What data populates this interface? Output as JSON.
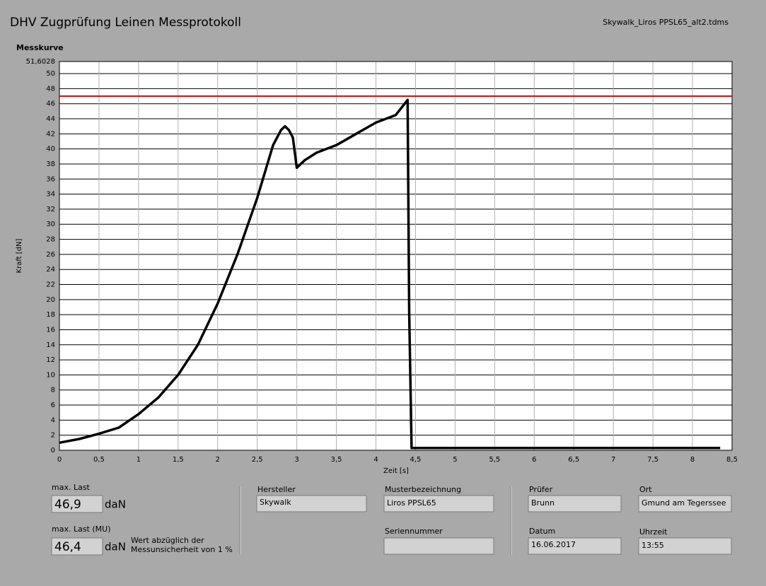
{
  "header": {
    "title": "DHV Zugprüfung Leinen Messprotokoll",
    "file": "Skywalk_Liros PPSL65_alt2.tdms"
  },
  "chart_data": {
    "type": "line",
    "title": "Messkurve",
    "x_label": "Zeit [s]",
    "y_label": "Kraft [dN]",
    "x": [
      0,
      0.25,
      0.5,
      0.75,
      1.0,
      1.25,
      1.5,
      1.75,
      2.0,
      2.25,
      2.5,
      2.6,
      2.7,
      2.8,
      2.85,
      2.9,
      2.95,
      3.0,
      3.1,
      3.25,
      3.5,
      3.75,
      4.0,
      4.25,
      4.4,
      4.42,
      4.45,
      5.0,
      6.0,
      7.0,
      8.0,
      8.35
    ],
    "values": [
      1,
      1.5,
      2.2,
      3,
      4.8,
      7,
      10,
      14,
      19.5,
      26,
      33.5,
      37,
      40.5,
      42.5,
      43,
      42.5,
      41.5,
      37.5,
      38.5,
      39.5,
      40.5,
      42,
      43.5,
      44.5,
      46.5,
      18.5,
      0.3,
      0.3,
      0.3,
      0.3,
      0.3,
      0.3
    ],
    "color": "#000000",
    "reference_line": {
      "value": 47,
      "color": "#d01010"
    },
    "xlim": [
      0,
      8.5
    ],
    "ylim": [
      0,
      51.6028
    ],
    "xticks": [
      0,
      {
        "value": 0.5,
        "label": "0,5"
      },
      1,
      {
        "value": 1.5,
        "label": "1,5"
      },
      2,
      {
        "value": 2.5,
        "label": "2,5"
      },
      3,
      {
        "value": 3.5,
        "label": "3,5"
      },
      4,
      {
        "value": 4.5,
        "label": "4,5"
      },
      5,
      {
        "value": 5.5,
        "label": "5,5"
      },
      6,
      {
        "value": 6.5,
        "label": "6,5"
      },
      7,
      {
        "value": 7.5,
        "label": "7,5"
      },
      8,
      {
        "value": 8.5,
        "label": "8,5"
      }
    ],
    "yticks": [
      0,
      2,
      4,
      6,
      8,
      10,
      12,
      14,
      16,
      18,
      20,
      22,
      24,
      26,
      28,
      30,
      32,
      34,
      36,
      38,
      40,
      42,
      44,
      46,
      48,
      50,
      {
        "value": 51.6028,
        "label": "51,6028"
      }
    ],
    "grid": true
  },
  "results": {
    "max_load_label": "max. Last",
    "max_load": "46,9",
    "unit": "daN",
    "max_load_mu_label": "max. Last (MU)",
    "max_load_mu": "46,4",
    "unit_mu": "daN",
    "note": [
      "Wert abzüglich der",
      "Messunsicherheit von 1 %"
    ]
  },
  "fields": {
    "hersteller_label": "Hersteller",
    "hersteller": "Skywalk",
    "muster_label": "Musterbezeichnung",
    "muster": "Liros PPSL65",
    "serien_label": "Seriennummer",
    "pruefer_label": "Prüfer",
    "pruefer": "Brunn",
    "ort_label": "Ort",
    "ort": "Gmund am Tegerssee",
    "datum_label": "Datum",
    "datum": "16.06.2017",
    "uhrzeit_label": "Uhrzeit",
    "uhrzeit": "13:55"
  }
}
